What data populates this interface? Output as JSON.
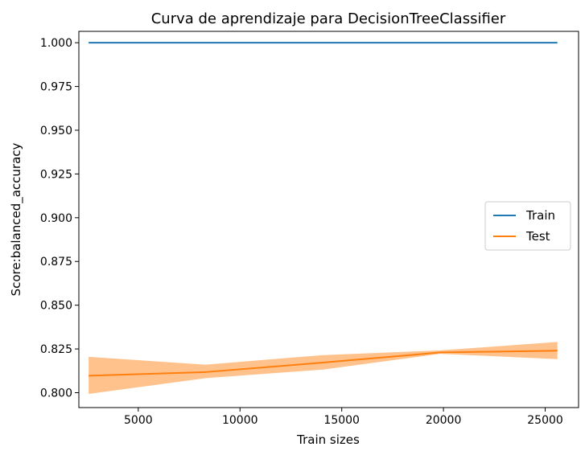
{
  "chart_data": {
    "type": "line",
    "title": "Curva de aprendizaje para DecisionTreeClassifier",
    "xlabel": "Train sizes",
    "ylabel": "Score:balanced_accuracy",
    "xlim": [
      2080,
      26640
    ],
    "ylim": [
      0.7915,
      1.0065
    ],
    "xticks": [
      5000,
      10000,
      15000,
      20000,
      25000
    ],
    "xtick_labels": [
      "5000",
      "10000",
      "15000",
      "20000",
      "25000"
    ],
    "yticks": [
      0.8,
      0.825,
      0.85,
      0.875,
      0.9,
      0.925,
      0.95,
      0.975,
      1.0
    ],
    "ytick_labels": [
      "0.800",
      "0.825",
      "0.850",
      "0.875",
      "0.900",
      "0.925",
      "0.950",
      "0.975",
      "1.000"
    ],
    "grid": false,
    "legend_position": "right",
    "series": [
      {
        "name": "Train",
        "color": "#1f77b4",
        "x": [
          2560,
          8320,
          14080,
          19840,
          25600
        ],
        "y": [
          1.0,
          1.0,
          1.0,
          1.0,
          1.0
        ]
      },
      {
        "name": "Test",
        "color": "#ff7f0e",
        "x": [
          2560,
          8320,
          14080,
          19840,
          25600
        ],
        "y": [
          0.8097,
          0.8118,
          0.8172,
          0.823,
          0.824
        ],
        "band_lower": [
          0.7993,
          0.8083,
          0.8132,
          0.8222,
          0.8192
        ],
        "band_upper": [
          0.8205,
          0.816,
          0.8215,
          0.8242,
          0.829
        ],
        "band_color": "#ffbb80"
      }
    ]
  }
}
